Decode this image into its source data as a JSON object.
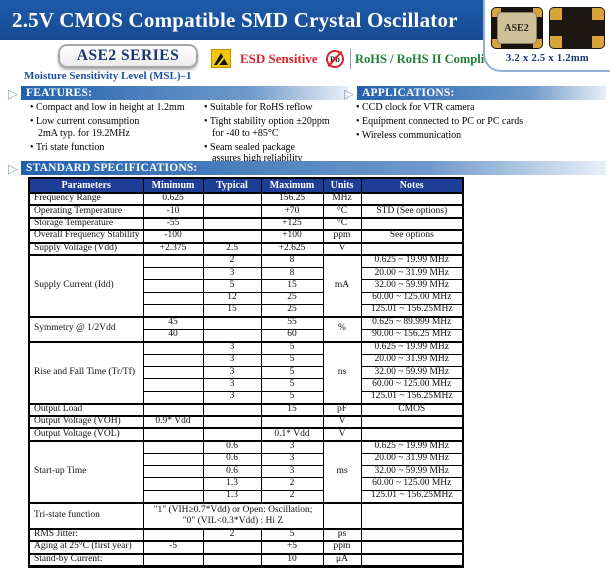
{
  "header": {
    "title": "2.5V CMOS Compatible SMD Crystal Oscillator",
    "series": "ASE2 SERIES",
    "msl": "Moisture Sensitivity Level (MSL)–1",
    "esd_label": "ESD Sensitive",
    "pb": "Pb",
    "rohs_label": "RoHS / RoHS II Compliant",
    "package": {
      "chip_label": "ASE2",
      "dimensions": "3.2 x 2.5 x 1.2mm"
    }
  },
  "features": {
    "heading": "FEATURES:",
    "col1": [
      "Compact and low in height at 1.2mm",
      "Low current consumption\n2mA typ. for 19.2MHz",
      "Tri state function"
    ],
    "col2": [
      "Suitable for RoHS reflow",
      "Tight stability option ±20ppm\nfor -40 to +85°C",
      "Seam sealed package\nassures high reliability"
    ]
  },
  "applications": {
    "heading": "APPLICATIONS:",
    "items": [
      "CCD clock for VTR camera",
      "Equipment connected to PC or PC cards",
      "Wireless communication"
    ]
  },
  "specifications": {
    "heading": "STANDARD SPECIFICATIONS:",
    "columns": [
      "Parameters",
      "Minimum",
      "Typical",
      "Maximum",
      "Units",
      "Notes"
    ],
    "rows": [
      {
        "cells": [
          {
            "t": "Frequency Range",
            "cls": "p"
          },
          {
            "t": "0.625"
          },
          {
            "t": ""
          },
          {
            "t": "156.25"
          },
          {
            "t": "MHz"
          },
          {
            "t": ""
          }
        ]
      },
      {
        "cells": [
          {
            "t": "Operating Temperature",
            "cls": "p"
          },
          {
            "t": "-10"
          },
          {
            "t": ""
          },
          {
            "t": "+70"
          },
          {
            "t": "°C"
          },
          {
            "t": "STD (See options)"
          }
        ]
      },
      {
        "cells": [
          {
            "t": "Storage Temperature",
            "cls": "p"
          },
          {
            "t": "-55"
          },
          {
            "t": ""
          },
          {
            "t": "+125"
          },
          {
            "t": "°C"
          },
          {
            "t": ""
          }
        ]
      },
      {
        "cells": [
          {
            "t": "Overall Frequency Stability",
            "cls": "p"
          },
          {
            "t": "-100"
          },
          {
            "t": ""
          },
          {
            "t": "+100"
          },
          {
            "t": "ppm"
          },
          {
            "t": "See options"
          }
        ]
      },
      {
        "cells": [
          {
            "t": "Supply Voltage (Vdd)",
            "cls": "p"
          },
          {
            "t": "+2.375"
          },
          {
            "t": "2.5"
          },
          {
            "t": "+2.625"
          },
          {
            "t": "V"
          },
          {
            "t": ""
          }
        ]
      },
      {
        "cells": [
          {
            "t": "Supply Current (Idd)",
            "cls": "p",
            "rs": 5
          },
          {
            "t": ""
          },
          {
            "t": "2"
          },
          {
            "t": "8"
          },
          {
            "t": "mA",
            "rs": 5
          },
          {
            "t": "0.625 ~ 19.99 MHz"
          }
        ]
      },
      {
        "sub": true,
        "cells": [
          {
            "t": ""
          },
          {
            "t": "3"
          },
          {
            "t": "8"
          },
          {
            "t": "20.00 ~ 31.99 MHz"
          }
        ]
      },
      {
        "sub": true,
        "cells": [
          {
            "t": ""
          },
          {
            "t": "5"
          },
          {
            "t": "15"
          },
          {
            "t": "32.00 ~ 59.99 MHz"
          }
        ]
      },
      {
        "sub": true,
        "cells": [
          {
            "t": ""
          },
          {
            "t": "12"
          },
          {
            "t": "25"
          },
          {
            "t": "60.00 ~ 125.00 MHz"
          }
        ]
      },
      {
        "sub": true,
        "cells": [
          {
            "t": ""
          },
          {
            "t": "15"
          },
          {
            "t": "25"
          },
          {
            "t": "125.01 ~ 156.25MHz"
          }
        ]
      },
      {
        "cells": [
          {
            "t": "Symmetry @ 1/2Vdd",
            "cls": "p",
            "rs": 2
          },
          {
            "t": "45"
          },
          {
            "t": ""
          },
          {
            "t": "55"
          },
          {
            "t": "%",
            "rs": 2
          },
          {
            "t": "0.625 ~ 89.999 MHz"
          }
        ]
      },
      {
        "sub": true,
        "cells": [
          {
            "t": "40"
          },
          {
            "t": ""
          },
          {
            "t": "60"
          },
          {
            "t": "90.00 ~ 156.25 MHz"
          }
        ]
      },
      {
        "cells": [
          {
            "t": "Rise and Fall Time (Tr/Tf)",
            "cls": "p",
            "rs": 5
          },
          {
            "t": ""
          },
          {
            "t": "3"
          },
          {
            "t": "5"
          },
          {
            "t": "ns",
            "rs": 5
          },
          {
            "t": "0.625 ~ 19.99 MHz"
          }
        ]
      },
      {
        "sub": true,
        "cells": [
          {
            "t": ""
          },
          {
            "t": "3"
          },
          {
            "t": "5"
          },
          {
            "t": "20.00 ~ 31.99 MHz"
          }
        ]
      },
      {
        "sub": true,
        "cells": [
          {
            "t": ""
          },
          {
            "t": "3"
          },
          {
            "t": "5"
          },
          {
            "t": "32.00 ~ 59.99 MHz"
          }
        ]
      },
      {
        "sub": true,
        "cells": [
          {
            "t": ""
          },
          {
            "t": "3"
          },
          {
            "t": "5"
          },
          {
            "t": "60.00 ~ 125.00 MHz"
          }
        ]
      },
      {
        "sub": true,
        "cells": [
          {
            "t": ""
          },
          {
            "t": "3"
          },
          {
            "t": "5"
          },
          {
            "t": "125.01 ~ 156.25MHz"
          }
        ]
      },
      {
        "cells": [
          {
            "t": "Output Load",
            "cls": "p"
          },
          {
            "t": ""
          },
          {
            "t": ""
          },
          {
            "t": "15"
          },
          {
            "t": "pF"
          },
          {
            "t": "CMOS"
          }
        ]
      },
      {
        "cells": [
          {
            "t": "Output Voltage (VOH)",
            "cls": "p"
          },
          {
            "t": "0.9* Vdd"
          },
          {
            "t": ""
          },
          {
            "t": ""
          },
          {
            "t": "V"
          },
          {
            "t": ""
          }
        ]
      },
      {
        "cells": [
          {
            "t": "Output Voltage (VOL)",
            "cls": "p"
          },
          {
            "t": ""
          },
          {
            "t": ""
          },
          {
            "t": "0.1* Vdd"
          },
          {
            "t": "V"
          },
          {
            "t": ""
          }
        ]
      },
      {
        "cells": [
          {
            "t": "Start-up Time",
            "cls": "p",
            "rs": 5
          },
          {
            "t": ""
          },
          {
            "t": "0.6"
          },
          {
            "t": "3"
          },
          {
            "t": "ms",
            "rs": 5
          },
          {
            "t": "0.625 ~ 19.99 MHz"
          }
        ]
      },
      {
        "sub": true,
        "cells": [
          {
            "t": ""
          },
          {
            "t": "0.6"
          },
          {
            "t": "3"
          },
          {
            "t": "20.00 ~ 31.99 MHz"
          }
        ]
      },
      {
        "sub": true,
        "cells": [
          {
            "t": ""
          },
          {
            "t": "0.6"
          },
          {
            "t": "3"
          },
          {
            "t": "32.00 ~ 59.99 MHz"
          }
        ]
      },
      {
        "sub": true,
        "cells": [
          {
            "t": ""
          },
          {
            "t": "1.3"
          },
          {
            "t": "2"
          },
          {
            "t": "60.00 ~ 125.00 MHz"
          }
        ]
      },
      {
        "sub": true,
        "cells": [
          {
            "t": ""
          },
          {
            "t": "1.3"
          },
          {
            "t": "2"
          },
          {
            "t": "125.01 ~ 156.25MHz"
          }
        ]
      },
      {
        "tall": true,
        "cells": [
          {
            "t": "Tri-state function",
            "cls": "p"
          },
          {
            "t": "\"1\" (VIH≥0.7*Vdd) or Open: Oscillation;\n\"0\" (VIL<0.3*Vdd) : Hi Z",
            "cs": 3,
            "cls": "pre"
          },
          {
            "t": ""
          },
          {
            "t": ""
          }
        ]
      },
      {
        "cells": [
          {
            "t": "RMS Jitter:",
            "cls": "p"
          },
          {
            "t": ""
          },
          {
            "t": "2"
          },
          {
            "t": "5"
          },
          {
            "t": "ps"
          },
          {
            "t": ""
          }
        ]
      },
      {
        "cells": [
          {
            "t": "Aging at 25°C (first year)",
            "cls": "p"
          },
          {
            "t": "-5"
          },
          {
            "t": ""
          },
          {
            "t": "+5"
          },
          {
            "t": "ppm"
          },
          {
            "t": ""
          }
        ]
      },
      {
        "cells": [
          {
            "t": "Stand-by Current:",
            "cls": "p"
          },
          {
            "t": ""
          },
          {
            "t": ""
          },
          {
            "t": "10"
          },
          {
            "t": "μA"
          },
          {
            "t": ""
          }
        ]
      }
    ]
  },
  "colors": {
    "banner": "#1f5aa9",
    "banner-dark": "#174b94",
    "thbg": "#1e3d96",
    "barstart": "#2160ae",
    "barmid": "#6f9aca",
    "msl": "#1b50a4",
    "navytext": "#17356e",
    "red": "#d8232a",
    "green": "#1e7e34",
    "boxborder": "#93b2d8",
    "gold": "#d9a33c",
    "lid": "#cfc09a"
  }
}
